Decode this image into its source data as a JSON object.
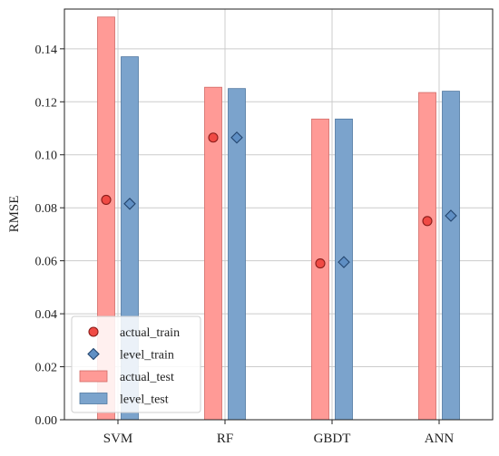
{
  "chart_data": {
    "type": "bar",
    "title": "",
    "xlabel": "",
    "ylabel": "RMSE",
    "ylim": [
      0,
      0.155
    ],
    "yticks": [
      "0.00",
      "0.02",
      "0.04",
      "0.06",
      "0.08",
      "0.10",
      "0.12",
      "0.14"
    ],
    "grid": true,
    "legend_position": "bottom-left",
    "categories": [
      "SVM",
      "RF",
      "GBDT",
      "ANN"
    ],
    "bar_series": [
      {
        "name": "actual_test",
        "values": [
          0.152,
          0.1255,
          0.1135,
          0.1235
        ],
        "color": "#ff9a96",
        "edge": "#d36b67"
      },
      {
        "name": "level_test",
        "values": [
          0.137,
          0.125,
          0.1135,
          0.124
        ],
        "color": "#7ba3cc",
        "edge": "#4f77a0"
      }
    ],
    "marker_series": [
      {
        "name": "actual_train",
        "values": [
          0.083,
          0.1065,
          0.059,
          0.075
        ],
        "marker": "circle",
        "color": "#f04a44",
        "edge": "#8a1d1a"
      },
      {
        "name": "level_train",
        "values": [
          0.0815,
          0.1065,
          0.0595,
          0.077
        ],
        "marker": "diamond",
        "color": "#5f8fc4",
        "edge": "#23456e"
      }
    ]
  }
}
